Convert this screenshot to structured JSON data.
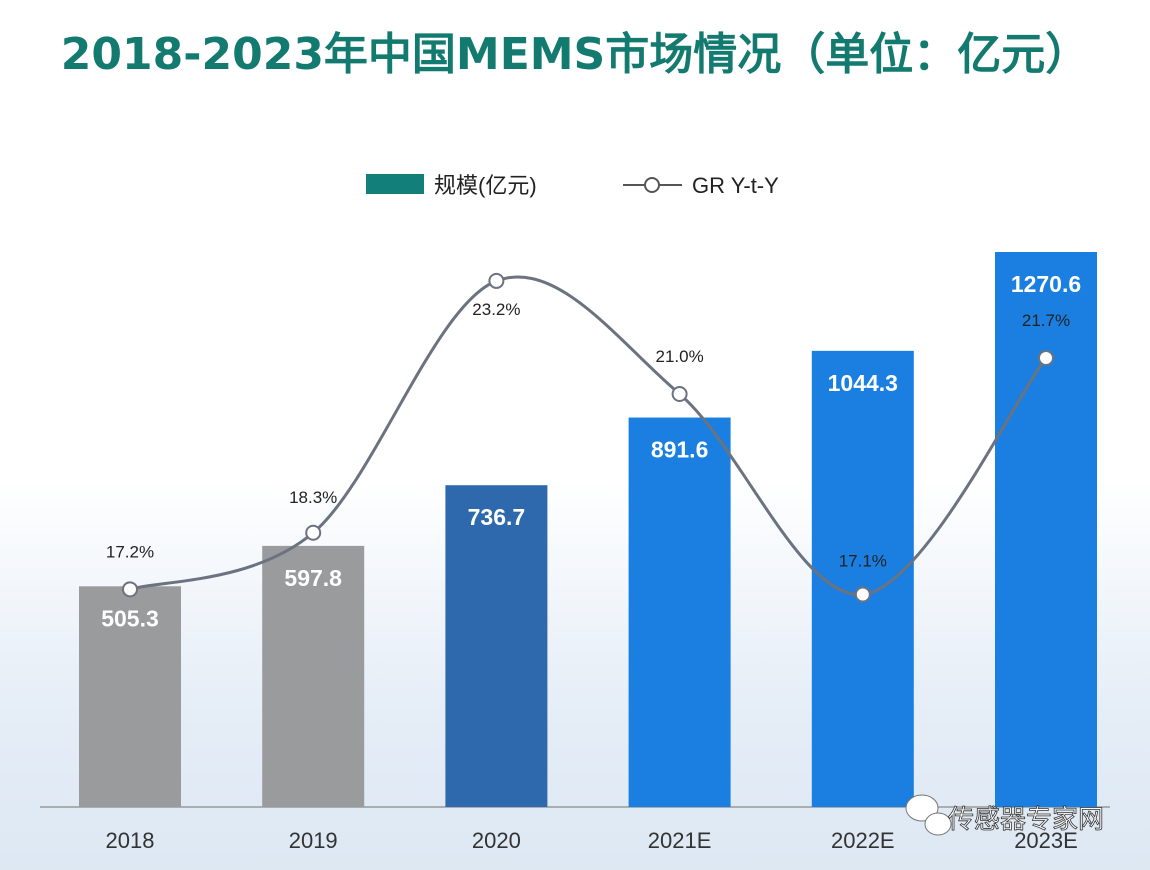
{
  "title": "2018-2023年中国MEMS市场情况（单位：亿元）",
  "watermark": "传感器专家网",
  "chart_data": {
    "type": "bar",
    "title": "2018-2023年中国MEMS市场情况（单位：亿元）",
    "categories": [
      "2018",
      "2019",
      "2020",
      "2021E",
      "2022E",
      "2023E"
    ],
    "series": [
      {
        "name": "规模(亿元)",
        "type": "bar",
        "values": [
          505.3,
          597.8,
          736.7,
          891.6,
          1044.3,
          1270.6
        ],
        "value_labels": [
          "505.3",
          "597.8",
          "736.7",
          "891.6",
          "1044.3",
          "1270.6"
        ],
        "colors": [
          "#9a9b9d",
          "#9a9b9d",
          "#2f69ad",
          "#1a7fe0",
          "#1a7fe0",
          "#1a7fe0"
        ]
      },
      {
        "name": "GR Y-t-Y",
        "type": "line",
        "values": [
          17.2,
          18.3,
          23.2,
          21.0,
          17.1,
          21.7
        ],
        "value_labels": [
          "17.2%",
          "18.3%",
          "23.2%",
          "21.0%",
          "17.1%",
          "21.7%"
        ],
        "color": "#6b7280",
        "smooth": true
      }
    ],
    "legend": {
      "position": "top",
      "legend_bar_color": "#137f7a"
    },
    "grid": false
  }
}
